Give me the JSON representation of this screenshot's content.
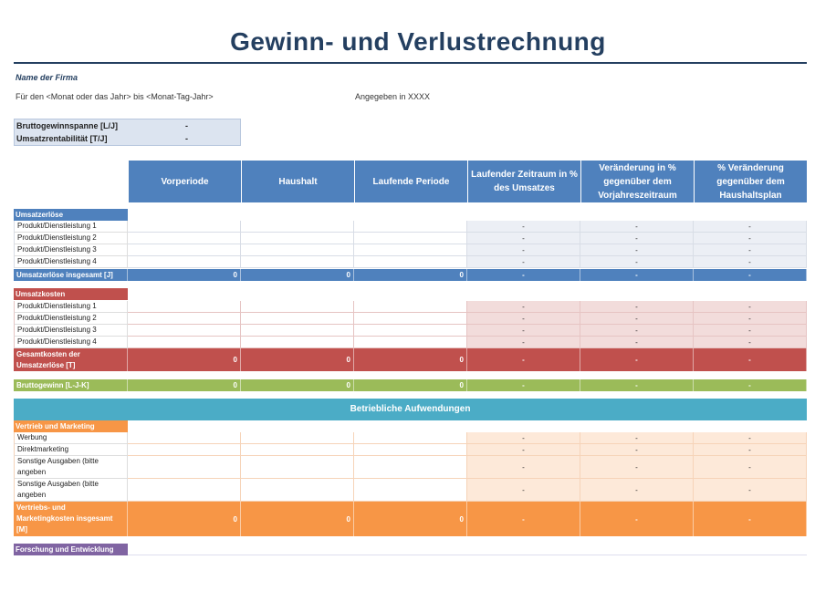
{
  "title": "Gewinn- und Verlustrechnung",
  "company": "Name der Firma",
  "period": "Für den <Monat oder das Jahr> bis <Monat-Tag-Jahr>",
  "units": "Angegeben in XXXX",
  "kpis": [
    {
      "label": "Bruttogewinnspanne [L/J]",
      "value": "-"
    },
    {
      "label": "Umsatzrentabilität [T/J]",
      "value": "-"
    }
  ],
  "columns": [
    "Vorperiode",
    "Haushalt",
    "Laufende Periode",
    "Laufender Zeitraum in % des Umsatzes",
    "Veränderung in % gegenüber dem Vorjahreszeitraum",
    "% Veränderung gegenüber dem Haushaltsplan"
  ],
  "colors": {
    "blue": "#4f81bd",
    "blue_light": "#eceff5",
    "red": "#c0504d",
    "red_light": "#f2dcdb",
    "green": "#9bbb59",
    "teal": "#4bacc6",
    "orange": "#f79646",
    "orange_light": "#fde9d9",
    "purple": "#8064a2"
  },
  "sections": {
    "umsatz": {
      "label": "Umsatzerlöse",
      "items": [
        "Produkt/Dienstleistung 1",
        "Produkt/Dienstleistung 2",
        "Produkt/Dienstleistung 3",
        "Produkt/Dienstleistung 4"
      ],
      "total": {
        "label": "Umsatzerlöse insgesamt [J]",
        "values": [
          "0",
          "0",
          "0",
          "-",
          "-",
          "-"
        ]
      }
    },
    "kosten": {
      "label": "Umsatzkosten",
      "items": [
        "Produkt/Dienstleistung 1",
        "Produkt/Dienstleistung 2",
        "Produkt/Dienstleistung 3",
        "Produkt/Dienstleistung 4"
      ],
      "total": {
        "label": "Gesamtkosten der Umsatzerlöse [T]",
        "values": [
          "0",
          "0",
          "0",
          "-",
          "-",
          "-"
        ]
      }
    },
    "brutto": {
      "label": "Bruttogewinn [L-J-K]",
      "values": [
        "0",
        "0",
        "0",
        "-",
        "-",
        "-"
      ]
    },
    "betrieb_banner": "Betriebliche Aufwendungen",
    "vertrieb": {
      "label": "Vertrieb und Marketing",
      "items": [
        "Werbung",
        "Direktmarketing",
        "Sonstige Ausgaben (bitte angeben",
        "Sonstige Ausgaben (bitte angeben"
      ],
      "total": {
        "label": "Vertriebs- und Marketingkosten insgesamt [M]",
        "values": [
          "0",
          "0",
          "0",
          "-",
          "-",
          "-"
        ]
      }
    },
    "forschung": {
      "label": "Forschung und Entwicklung"
    }
  },
  "dash": "-"
}
